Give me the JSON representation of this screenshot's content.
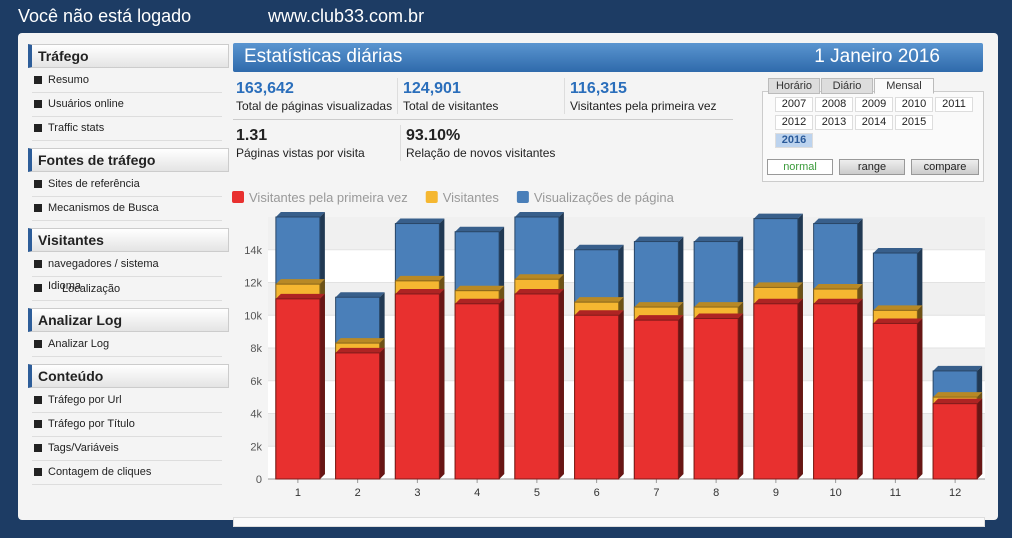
{
  "header": {
    "login": "Você não está logado",
    "site": "www.club33.com.br"
  },
  "sidebar": [
    {
      "title": "Tráfego",
      "items": [
        "Resumo",
        "Usuários online",
        "Traffic stats"
      ]
    },
    {
      "title": "Fontes de tráfego",
      "items": [
        "Sites de referência",
        "Mecanismos de Busca"
      ]
    },
    {
      "title": "Visitantes",
      "items": [
        "navegadores / sistema",
        {
          "labels": [
            "Idioma",
            "Localização"
          ]
        }
      ]
    },
    {
      "title": "Analizar Log",
      "items": [
        "Analizar Log"
      ]
    },
    {
      "title": "Conteúdo",
      "items": [
        "Tráfego por Url",
        "Tráfego por Título",
        "Tags/Variáveis",
        "Contagem de cliques"
      ]
    }
  ],
  "panel": {
    "title": "Estatísticas diárias",
    "date": "1 Janeiro 2016"
  },
  "stats": [
    {
      "value": "163,642",
      "label": "Total de páginas visualizadas"
    },
    {
      "value": "124,901",
      "label": "Total de visitantes"
    },
    {
      "value": "116,315",
      "label": "Visitantes pela primeira vez"
    },
    {
      "value": "1.31",
      "label": "Páginas vistas por visita"
    },
    {
      "value": "93.10%",
      "label": "Relação de novos visitantes"
    }
  ],
  "picker": {
    "tabs": [
      "Horário",
      "Diário",
      "Mensal"
    ],
    "active_tab": "Mensal",
    "years": [
      "2007",
      "2008",
      "2009",
      "2010",
      "2011",
      "2012",
      "2013",
      "2014",
      "2015",
      "2016"
    ],
    "active_year": "2016",
    "modes": [
      "normal",
      "range",
      "compare"
    ],
    "active_mode": "normal"
  },
  "chart_data": {
    "type": "bar",
    "categories": [
      "1",
      "2",
      "3",
      "4",
      "5",
      "6",
      "7",
      "8",
      "9",
      "10",
      "11",
      "12"
    ],
    "series": [
      {
        "name": "Visualizações de página",
        "color": "#4a7fb9",
        "values": [
          16000,
          11100,
          15600,
          15100,
          16000,
          14000,
          14500,
          14500,
          15900,
          15600,
          13800,
          6600
        ]
      },
      {
        "name": "Visitantes",
        "color": "#f5b731",
        "values": [
          11900,
          8300,
          12100,
          11500,
          12200,
          10800,
          10500,
          10500,
          11700,
          11600,
          10300,
          5000
        ]
      },
      {
        "name": "Visitantes pela primeira vez",
        "color": "#e8302f",
        "values": [
          11000,
          7700,
          11300,
          10700,
          11300,
          10000,
          9700,
          9800,
          10700,
          10700,
          9500,
          4600
        ]
      }
    ],
    "legend_order": [
      "Visitantes pela primeira vez",
      "Visitantes",
      "Visualizações de página"
    ],
    "ylim": [
      0,
      16000
    ],
    "yticks": [
      0,
      {
        "value": 2000,
        "label": "2k"
      },
      {
        "value": 4000,
        "label": "4k"
      },
      {
        "value": 6000,
        "label": "6k"
      },
      {
        "value": 8000,
        "label": "8k"
      },
      {
        "value": 10000,
        "label": "10k"
      },
      {
        "value": 12000,
        "label": "12k"
      },
      {
        "value": 14000,
        "label": "14k"
      }
    ],
    "grid": true
  }
}
